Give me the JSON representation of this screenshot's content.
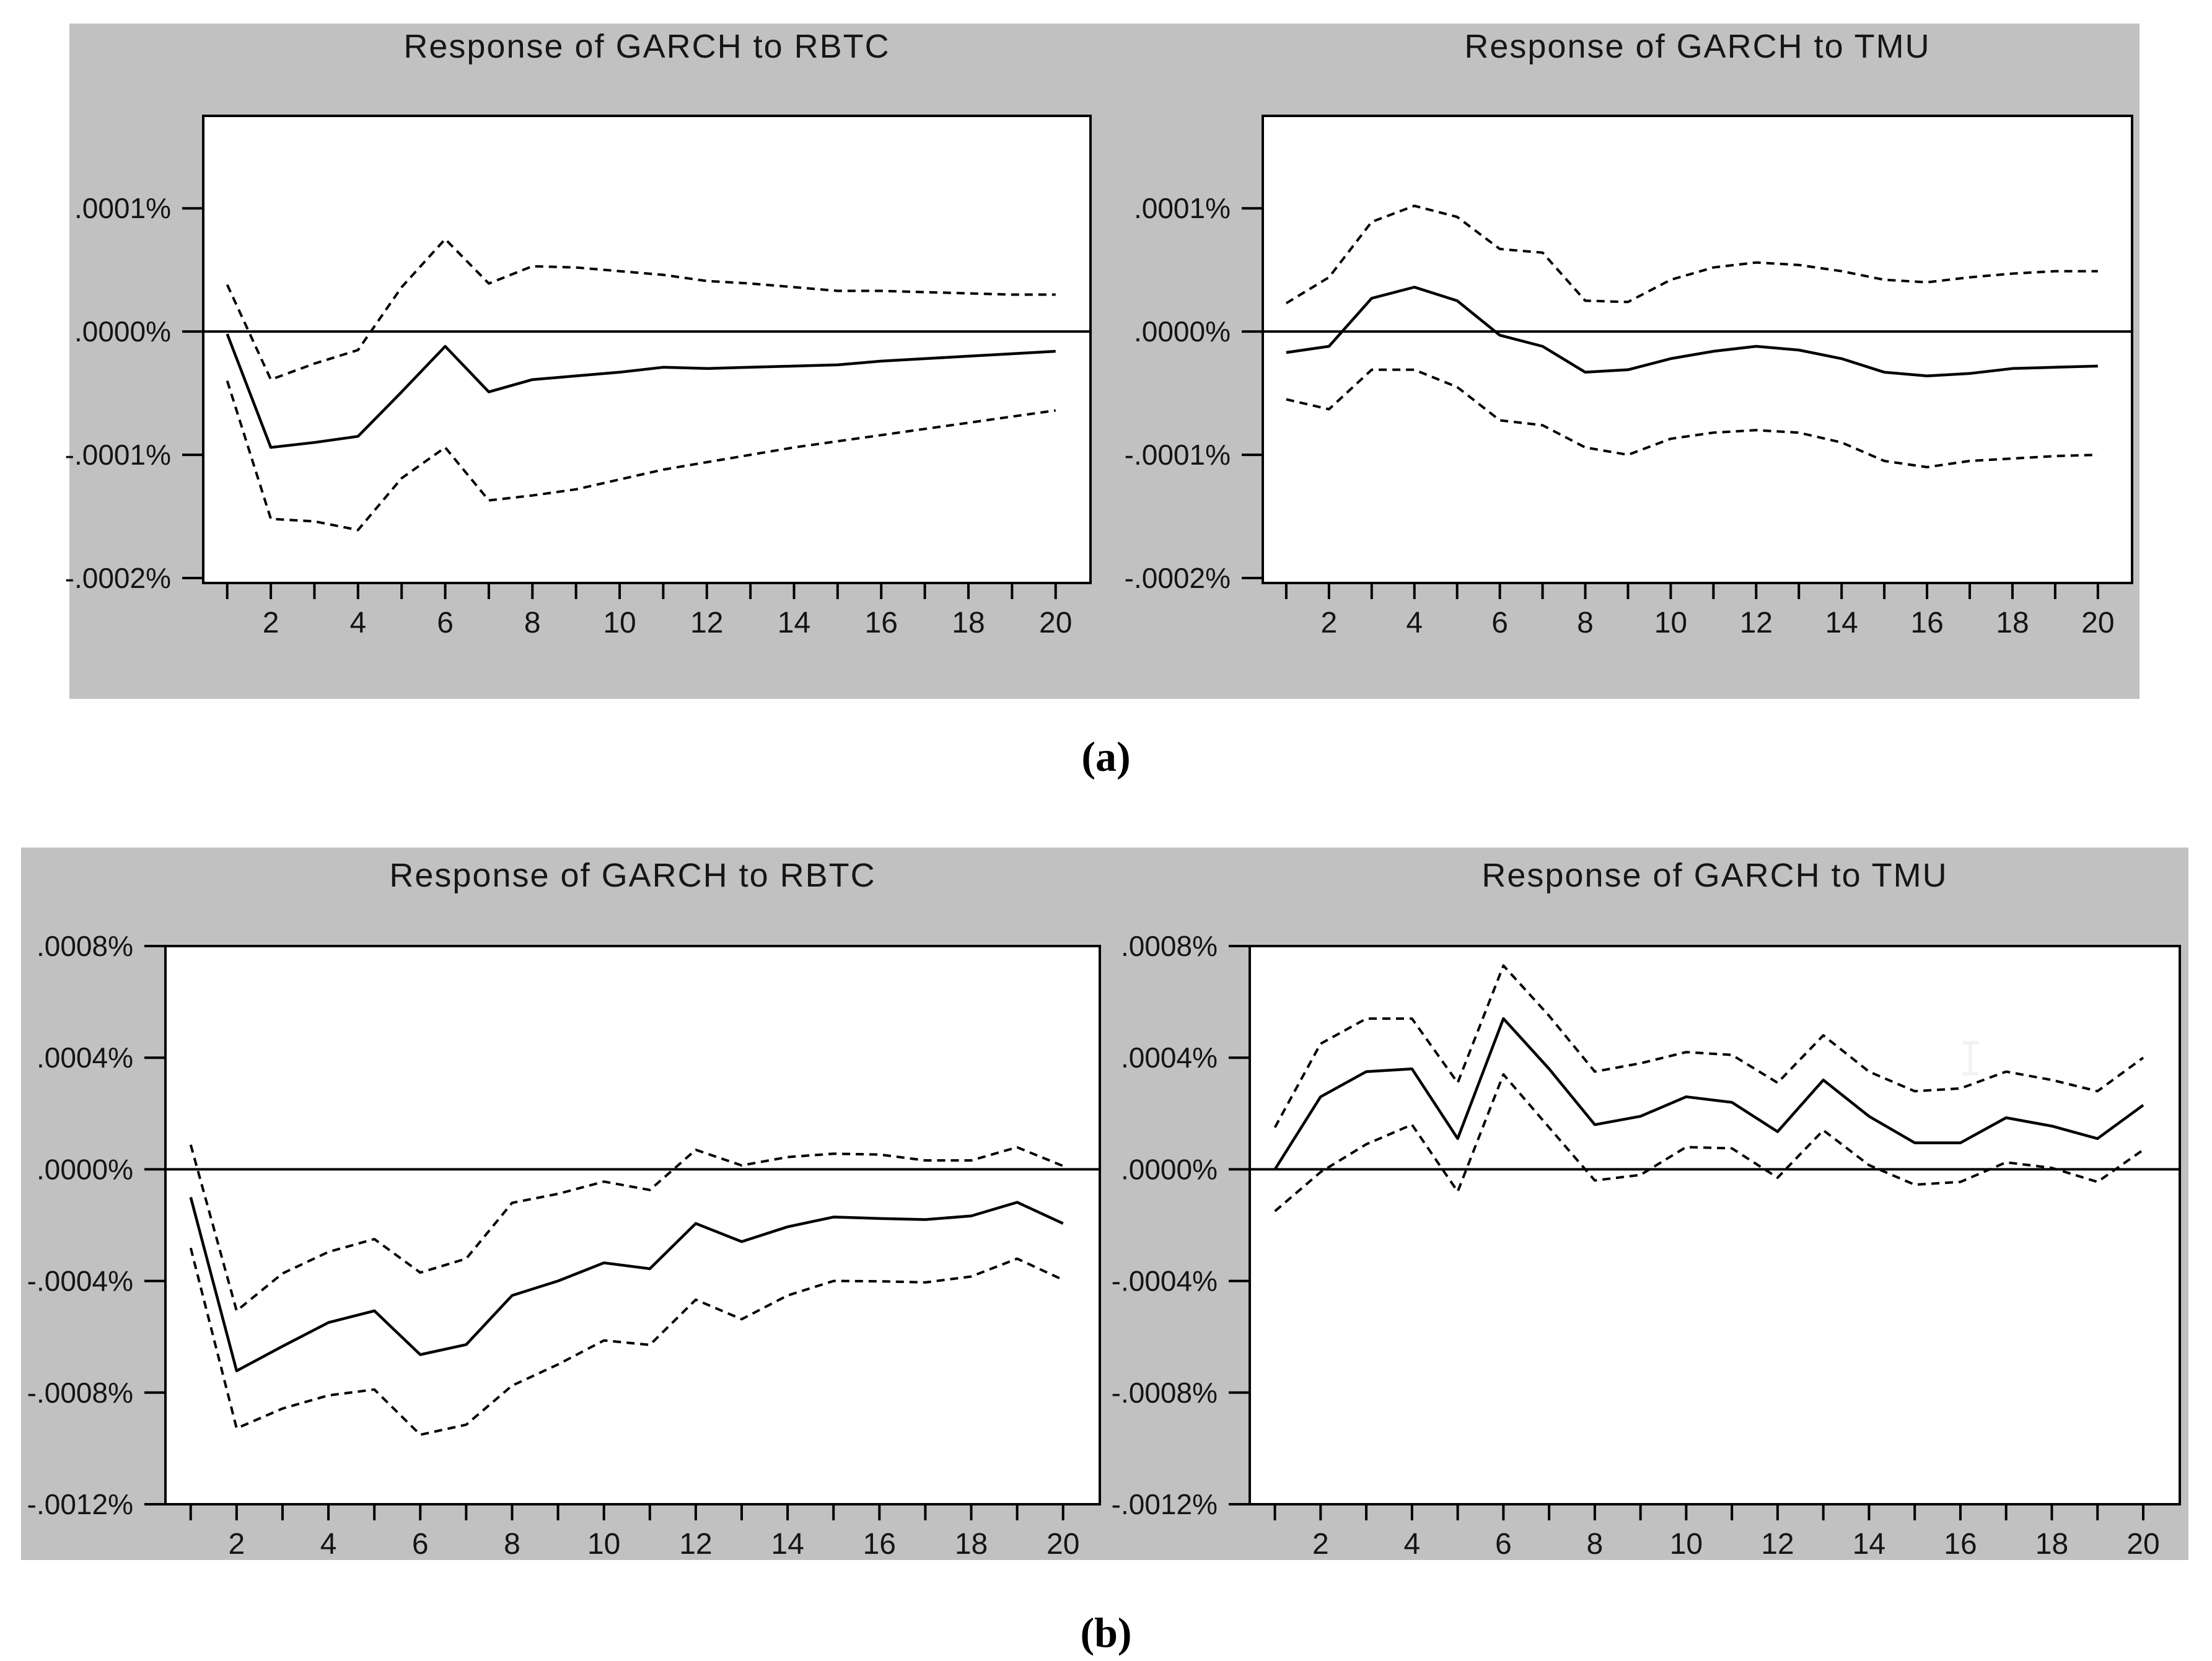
{
  "figure": {
    "caption_a": "(a)",
    "caption_b": "(b)"
  },
  "chart_data": [
    {
      "type": "line",
      "title": "Response of GARCH to RBTC",
      "panel": "a",
      "y_unit": "1e-4 percent",
      "grid": false,
      "legend": null,
      "zero_line": true,
      "ylim": [
        -2.04,
        1.75
      ],
      "y_ticks": [
        {
          "value": 1.0,
          "label": ".0001%"
        },
        {
          "value": 0.0,
          "label": ".0000%"
        },
        {
          "value": -1.0,
          "label": "-.0001%"
        },
        {
          "value": -2.0,
          "label": "-.0002%"
        }
      ],
      "x": [
        1,
        2,
        3,
        4,
        5,
        6,
        7,
        8,
        9,
        10,
        11,
        12,
        13,
        14,
        15,
        16,
        17,
        18,
        19,
        20
      ],
      "x_tick_labels": [
        "2",
        "4",
        "6",
        "8",
        "10",
        "12",
        "14",
        "16",
        "18",
        "20"
      ],
      "series": [
        {
          "name": "upper confidence band",
          "style": "dashed",
          "values": [
            0.38,
            -0.39,
            -0.26,
            -0.15,
            0.36,
            0.75,
            0.39,
            0.53,
            0.52,
            0.49,
            0.46,
            0.41,
            0.39,
            0.36,
            0.33,
            0.33,
            0.32,
            0.31,
            0.3,
            0.3
          ]
        },
        {
          "name": "response",
          "style": "solid",
          "values": [
            -0.02,
            -0.94,
            -0.9,
            -0.85,
            -0.49,
            -0.12,
            -0.49,
            -0.39,
            -0.36,
            -0.33,
            -0.29,
            -0.3,
            -0.29,
            -0.28,
            -0.27,
            -0.24,
            -0.22,
            -0.2,
            -0.18,
            -0.16
          ]
        },
        {
          "name": "lower confidence band",
          "style": "dashed",
          "values": [
            -0.4,
            -1.52,
            -1.54,
            -1.61,
            -1.19,
            -0.94,
            -1.37,
            -1.33,
            -1.28,
            -1.2,
            -1.12,
            -1.06,
            -1.0,
            -0.94,
            -0.89,
            -0.84,
            -0.79,
            -0.74,
            -0.69,
            -0.64
          ]
        }
      ]
    },
    {
      "type": "line",
      "title": "Response of GARCH to TMU",
      "panel": "a",
      "y_unit": "1e-4 percent",
      "grid": false,
      "legend": null,
      "zero_line": true,
      "ylim": [
        -2.04,
        1.75
      ],
      "y_ticks": [
        {
          "value": 1.0,
          "label": ".0001%"
        },
        {
          "value": 0.0,
          "label": ".0000%"
        },
        {
          "value": -1.0,
          "label": "-.0001%"
        },
        {
          "value": -2.0,
          "label": "-.0002%"
        }
      ],
      "x": [
        1,
        2,
        3,
        4,
        5,
        6,
        7,
        8,
        9,
        10,
        11,
        12,
        13,
        14,
        15,
        16,
        17,
        18,
        19,
        20
      ],
      "x_tick_labels": [
        "2",
        "4",
        "6",
        "8",
        "10",
        "12",
        "14",
        "16",
        "18",
        "20"
      ],
      "series": [
        {
          "name": "upper confidence band",
          "style": "dashed",
          "values": [
            0.23,
            0.44,
            0.89,
            1.02,
            0.93,
            0.67,
            0.64,
            0.25,
            0.24,
            0.42,
            0.52,
            0.56,
            0.54,
            0.49,
            0.42,
            0.4,
            0.44,
            0.47,
            0.49,
            0.49
          ]
        },
        {
          "name": "response",
          "style": "solid",
          "values": [
            -0.17,
            -0.12,
            0.27,
            0.36,
            0.25,
            -0.03,
            -0.12,
            -0.33,
            -0.31,
            -0.22,
            -0.16,
            -0.12,
            -0.15,
            -0.22,
            -0.33,
            -0.36,
            -0.34,
            -0.3,
            -0.29,
            -0.28
          ]
        },
        {
          "name": "lower confidence band",
          "style": "dashed",
          "values": [
            -0.55,
            -0.63,
            -0.31,
            -0.31,
            -0.45,
            -0.72,
            -0.76,
            -0.94,
            -1.0,
            -0.87,
            -0.82,
            -0.8,
            -0.82,
            -0.9,
            -1.05,
            -1.1,
            -1.05,
            -1.03,
            -1.01,
            -1.0
          ]
        }
      ]
    },
    {
      "type": "line",
      "title": "Response of GARCH to RBTC",
      "panel": "b",
      "y_unit": "1e-4 percent",
      "grid": false,
      "legend": null,
      "zero_line": true,
      "ylim": [
        -12,
        8
      ],
      "y_ticks": [
        {
          "value": 8,
          "label": ".0008%"
        },
        {
          "value": 4,
          "label": ".0004%"
        },
        {
          "value": 0,
          "label": ".0000%"
        },
        {
          "value": -4,
          "label": "-.0004%"
        },
        {
          "value": -8,
          "label": "-.0008%"
        },
        {
          "value": -12,
          "label": "-.0012%"
        }
      ],
      "x": [
        1,
        2,
        3,
        4,
        5,
        6,
        7,
        8,
        9,
        10,
        11,
        12,
        13,
        14,
        15,
        16,
        17,
        18,
        19,
        20
      ],
      "x_tick_labels": [
        "2",
        "4",
        "6",
        "8",
        "10",
        "12",
        "14",
        "16",
        "18",
        "20"
      ],
      "series": [
        {
          "name": "upper confidence band",
          "style": "dashed",
          "values": [
            0.88,
            -5.07,
            -3.73,
            -2.96,
            -2.5,
            -3.7,
            -3.2,
            -1.2,
            -0.88,
            -0.44,
            -0.74,
            0.7,
            0.14,
            0.44,
            0.56,
            0.53,
            0.32,
            0.32,
            0.79,
            0.12
          ]
        },
        {
          "name": "response",
          "style": "solid",
          "values": [
            -1.0,
            -7.22,
            -6.34,
            -5.49,
            -5.07,
            -6.64,
            -6.28,
            -4.52,
            -4.0,
            -3.35,
            -3.56,
            -1.94,
            -2.59,
            -2.06,
            -1.71,
            -1.76,
            -1.8,
            -1.67,
            -1.18,
            -1.94
          ]
        },
        {
          "name": "lower confidence band",
          "style": "dashed",
          "values": [
            -2.82,
            -9.28,
            -8.57,
            -8.1,
            -7.89,
            -9.51,
            -9.15,
            -7.75,
            -6.99,
            -6.13,
            -6.29,
            -4.67,
            -5.37,
            -4.52,
            -4.0,
            -4.01,
            -4.05,
            -3.84,
            -3.2,
            -3.96
          ]
        }
      ]
    },
    {
      "type": "line",
      "title": "Response of GARCH to TMU",
      "panel": "b",
      "y_unit": "1e-4 percent",
      "grid": false,
      "legend": null,
      "zero_line": true,
      "ylim": [
        -12,
        8
      ],
      "y_ticks": [
        {
          "value": 8,
          "label": ".0008%"
        },
        {
          "value": 4,
          "label": ".0004%"
        },
        {
          "value": 0,
          "label": ".0000%"
        },
        {
          "value": -4,
          "label": "-.0004%"
        },
        {
          "value": -8,
          "label": "-.0008%"
        },
        {
          "value": -12,
          "label": "-.0012%"
        }
      ],
      "x": [
        1,
        2,
        3,
        4,
        5,
        6,
        7,
        8,
        9,
        10,
        11,
        12,
        13,
        14,
        15,
        16,
        17,
        18,
        19,
        20
      ],
      "x_tick_labels": [
        "2",
        "4",
        "6",
        "8",
        "10",
        "12",
        "14",
        "16",
        "18",
        "20"
      ],
      "series": [
        {
          "name": "upper confidence band",
          "style": "dashed",
          "values": [
            1.5,
            4.5,
            5.4,
            5.4,
            3.1,
            7.3,
            5.5,
            3.5,
            3.8,
            4.2,
            4.1,
            3.1,
            4.8,
            3.5,
            2.8,
            2.9,
            3.5,
            3.2,
            2.8,
            4.0
          ]
        },
        {
          "name": "response",
          "style": "solid",
          "values": [
            0.0,
            2.6,
            3.5,
            3.6,
            1.1,
            5.4,
            3.6,
            1.6,
            1.9,
            2.6,
            2.4,
            1.35,
            3.2,
            1.9,
            0.95,
            0.95,
            1.85,
            1.55,
            1.1,
            2.3
          ]
        },
        {
          "name": "lower confidence band",
          "style": "dashed",
          "values": [
            -1.5,
            -0.1,
            0.9,
            1.6,
            -0.8,
            3.4,
            1.5,
            -0.4,
            -0.2,
            0.8,
            0.75,
            -0.3,
            1.4,
            0.15,
            -0.55,
            -0.45,
            0.25,
            0.05,
            -0.45,
            0.7
          ]
        }
      ]
    }
  ]
}
